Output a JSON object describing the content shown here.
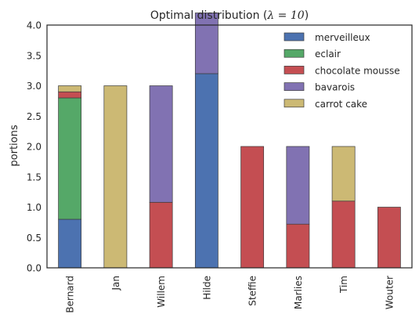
{
  "chart_data": {
    "type": "bar",
    "stacked": true,
    "title_prefix": "Optimal distribution (",
    "title_lambda": "λ",
    "title_eq": " = ",
    "title_value": "10",
    "title_suffix": ")",
    "xlabel": "",
    "ylabel": "portions",
    "ylim": [
      0,
      4.0
    ],
    "yticks": [
      "0.0",
      "0.5",
      "1.0",
      "1.5",
      "2.0",
      "2.5",
      "3.0",
      "3.5",
      "4.0"
    ],
    "grid": false,
    "legend_position": "top-right",
    "categories": [
      "Bernard",
      "Jan",
      "Willem",
      "Hilde",
      "Steffie",
      "Marlies",
      "Tim",
      "Wouter"
    ],
    "series": [
      {
        "name": "merveilleux",
        "color": "#4c72b0",
        "values": [
          0.8,
          0,
          0,
          3.2,
          0,
          0,
          0,
          0
        ]
      },
      {
        "name": "eclair",
        "color": "#55a868",
        "values": [
          2.0,
          0,
          0,
          0,
          0,
          0,
          0,
          0
        ]
      },
      {
        "name": "chocolate mousse",
        "color": "#c44e52",
        "values": [
          0.1,
          0,
          1.08,
          0,
          2.0,
          0.72,
          1.1,
          1.0
        ]
      },
      {
        "name": "bavarois",
        "color": "#8172b2",
        "values": [
          0,
          0,
          1.92,
          1.0,
          0,
          1.28,
          0,
          0
        ]
      },
      {
        "name": "carrot cake",
        "color": "#ccb974",
        "values": [
          0.1,
          3.0,
          0,
          0,
          0,
          0,
          0.9,
          0
        ]
      }
    ]
  }
}
